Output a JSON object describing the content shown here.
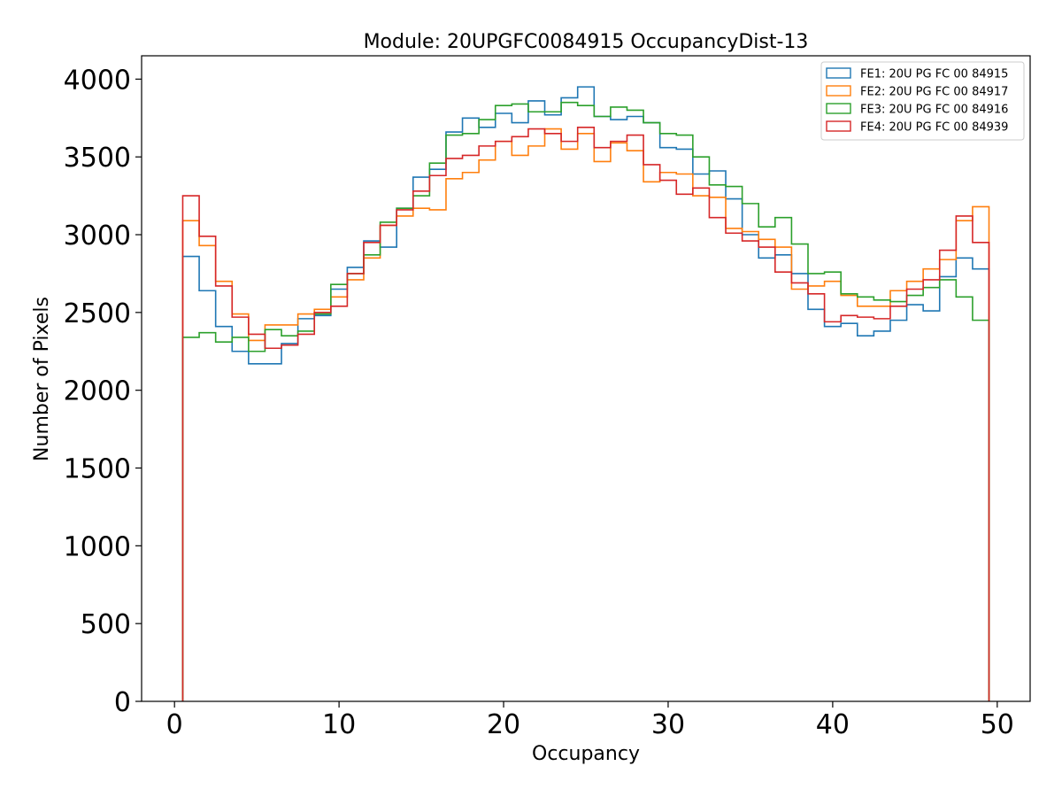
{
  "chart_data": {
    "type": "line",
    "title": "Module: 20UPGFC0084915 OccupancyDist-13",
    "xlabel": "Occupancy",
    "ylabel": "Number of Pixels",
    "xlim": [
      -2,
      52
    ],
    "ylim": [
      0,
      4150
    ],
    "xticks": [
      0,
      10,
      20,
      30,
      40,
      50
    ],
    "yticks": [
      0,
      500,
      1000,
      1500,
      2000,
      2500,
      3000,
      3500,
      4000
    ],
    "grid": false,
    "legend_position": "top-right",
    "histogram_style": "step",
    "bin_edges_start": 0.5,
    "bin_width": 1,
    "x": [
      1,
      2,
      3,
      4,
      5,
      6,
      7,
      8,
      9,
      10,
      11,
      12,
      13,
      14,
      15,
      16,
      17,
      18,
      19,
      20,
      21,
      22,
      23,
      24,
      25,
      26,
      27,
      28,
      29,
      30,
      31,
      32,
      33,
      34,
      35,
      36,
      37,
      38,
      39,
      40,
      41,
      42,
      43,
      44,
      45,
      46,
      47,
      48,
      49
    ],
    "series": [
      {
        "name": "FE1: 20U PG FC 00 84915",
        "color": "#1f77b4",
        "values": [
          2860,
          2640,
          2410,
          2250,
          2170,
          2170,
          2300,
          2460,
          2480,
          2650,
          2790,
          2960,
          2920,
          3170,
          3370,
          3420,
          3660,
          3750,
          3690,
          3780,
          3720,
          3860,
          3770,
          3880,
          3950,
          3760,
          3740,
          3760,
          3720,
          3560,
          3550,
          3390,
          3410,
          3230,
          3000,
          2850,
          2870,
          2750,
          2520,
          2410,
          2430,
          2350,
          2380,
          2450,
          2550,
          2510,
          2730,
          2850,
          2780
        ],
        "zorder": 1
      },
      {
        "name": "FE2: 20U PG FC 00 84917",
        "color": "#ff7f0e",
        "values": [
          3090,
          2930,
          2700,
          2490,
          2320,
          2420,
          2420,
          2490,
          2520,
          2600,
          2710,
          2850,
          3060,
          3120,
          3170,
          3160,
          3360,
          3400,
          3480,
          3600,
          3510,
          3570,
          3680,
          3550,
          3650,
          3470,
          3590,
          3540,
          3340,
          3400,
          3390,
          3250,
          3240,
          3040,
          3020,
          2970,
          2920,
          2650,
          2670,
          2700,
          2610,
          2540,
          2540,
          2640,
          2700,
          2780,
          2840,
          3090,
          3180
        ],
        "zorder": 2
      },
      {
        "name": "FE3: 20U PG FC 00 84916",
        "color": "#2ca02c",
        "values": [
          2340,
          2370,
          2310,
          2340,
          2250,
          2390,
          2350,
          2380,
          2490,
          2680,
          2750,
          2870,
          3080,
          3170,
          3250,
          3460,
          3640,
          3650,
          3740,
          3830,
          3840,
          3790,
          3790,
          3850,
          3830,
          3760,
          3820,
          3800,
          3720,
          3650,
          3640,
          3500,
          3320,
          3310,
          3200,
          3050,
          3110,
          2940,
          2750,
          2760,
          2620,
          2600,
          2580,
          2570,
          2610,
          2660,
          2710,
          2600,
          2450
        ],
        "zorder": 3
      },
      {
        "name": "FE4: 20U PG FC 00 84939",
        "color": "#d62728",
        "values": [
          3250,
          2990,
          2670,
          2470,
          2360,
          2270,
          2290,
          2360,
          2500,
          2540,
          2750,
          2950,
          3060,
          3160,
          3280,
          3380,
          3490,
          3510,
          3570,
          3600,
          3630,
          3680,
          3650,
          3600,
          3690,
          3560,
          3600,
          3640,
          3450,
          3350,
          3260,
          3300,
          3110,
          3010,
          2960,
          2920,
          2760,
          2690,
          2620,
          2440,
          2480,
          2470,
          2460,
          2540,
          2650,
          2710,
          2900,
          3120,
          2950
        ],
        "zorder": 4
      }
    ]
  }
}
